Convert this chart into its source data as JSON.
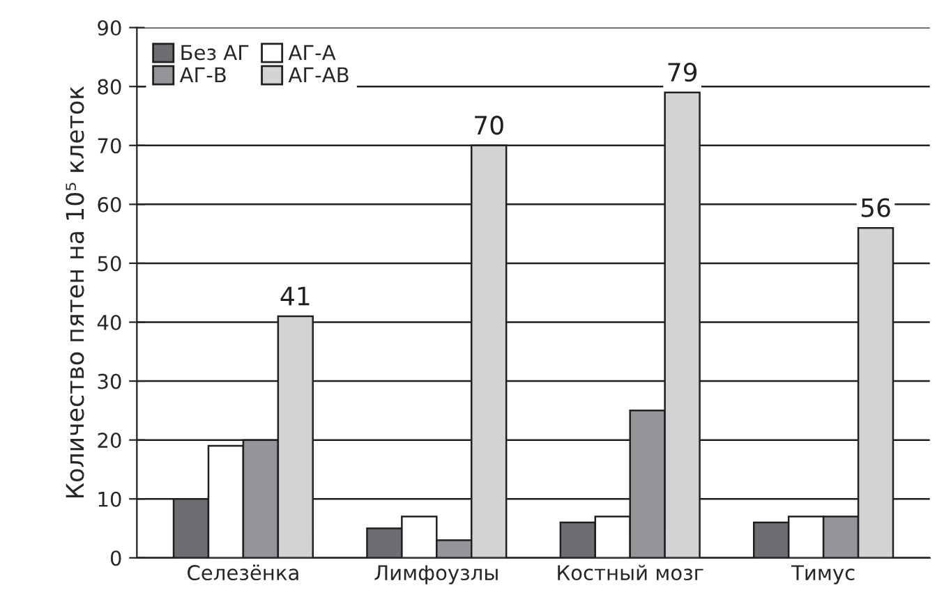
{
  "chart_data": {
    "type": "bar",
    "ylabel": "Количество пятен на 10⁵ клеток",
    "categories": [
      "Селезёнка",
      "Лимфоузлы",
      "Костный мозг",
      "Тимус"
    ],
    "series": [
      {
        "name": "Без АГ",
        "color": "#6d6e71",
        "values": [
          10,
          5,
          6,
          6
        ]
      },
      {
        "name": "АГ-А",
        "color": "#ffffff",
        "values": [
          19,
          7,
          7,
          7
        ]
      },
      {
        "name": "АГ-В",
        "color": "#939598",
        "values": [
          20,
          3,
          25,
          7
        ]
      },
      {
        "name": "АГ-АВ",
        "color": "#d1d3d4",
        "values": [
          41,
          70,
          79,
          56
        ],
        "value_labels": [
          "41",
          "70",
          "79",
          "56"
        ]
      }
    ],
    "ylim": [
      0,
      90
    ],
    "yticks": [
      0,
      10,
      20,
      30,
      40,
      50,
      60,
      70,
      80,
      90
    ],
    "grid": "y",
    "legend": "top left"
  }
}
